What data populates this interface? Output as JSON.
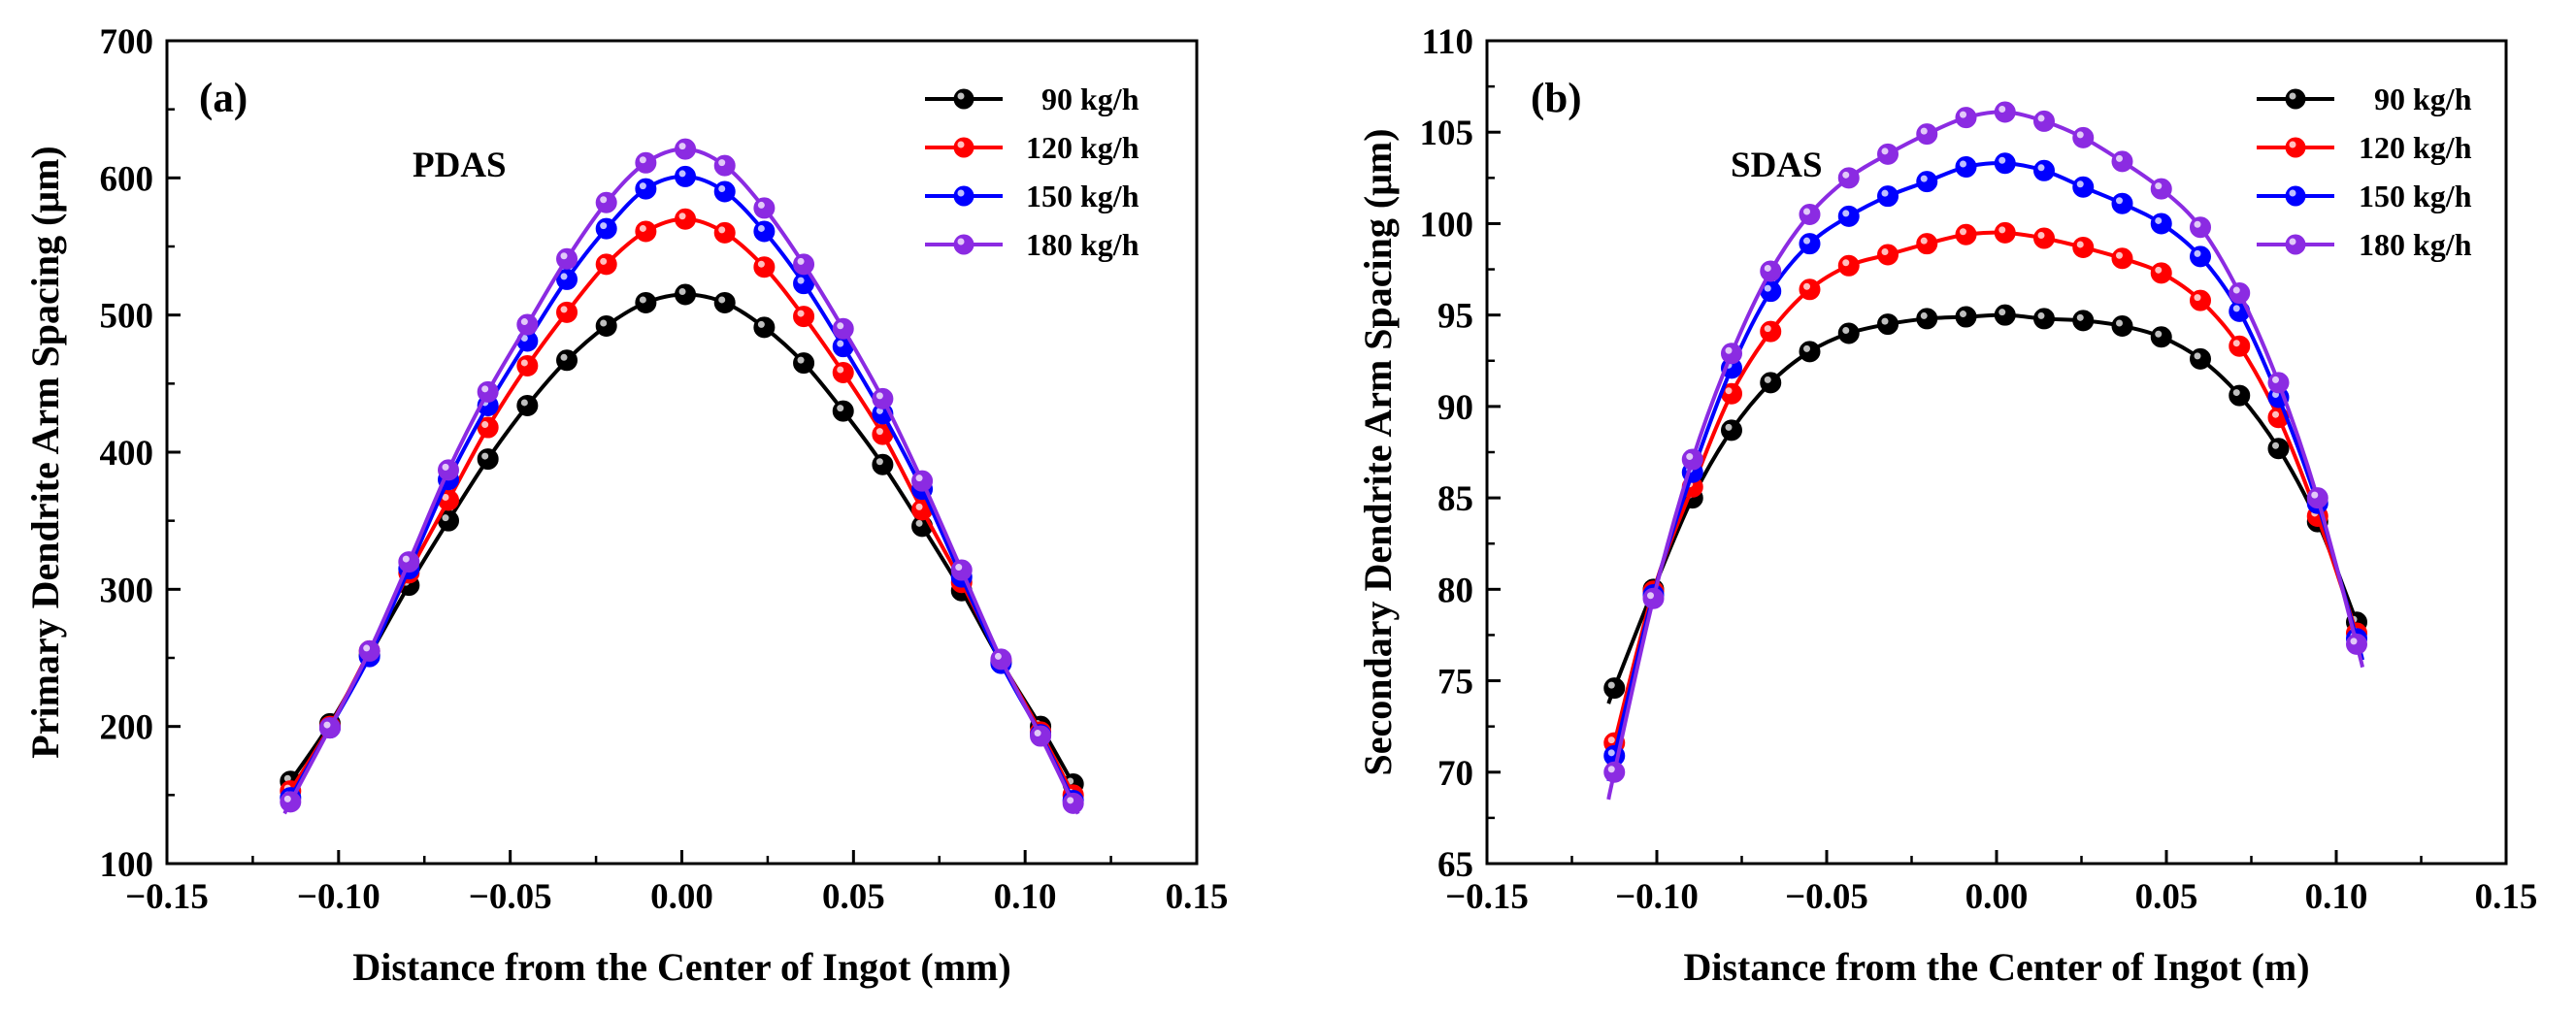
{
  "chart_data": [
    {
      "type": "line",
      "panel_label": "(a)",
      "annotation": "PDAS",
      "xlabel": "Distance from the Center of Ingot (mm)",
      "ylabel": "Primary Dendrite Arm Spacing (μm)",
      "xlim": [
        -0.15,
        0.15
      ],
      "ylim": [
        100,
        700
      ],
      "xticks": [
        -0.15,
        -0.1,
        -0.05,
        0.0,
        0.05,
        0.1,
        0.15
      ],
      "xtick_labels": [
        "−0.15",
        "−0.10",
        "−0.05",
        "0.00",
        "0.05",
        "0.10",
        "0.15"
      ],
      "yticks": [
        100,
        200,
        300,
        400,
        500,
        600,
        700
      ],
      "ytick_labels": [
        "100",
        "200",
        "300",
        "400",
        "500",
        "600",
        "700"
      ],
      "legend_position": "top-right",
      "x": [
        -0.114,
        -0.1025,
        -0.091,
        -0.0795,
        -0.068,
        -0.0565,
        -0.045,
        -0.0335,
        -0.022,
        -0.0105,
        0.001,
        0.0125,
        0.024,
        0.0355,
        0.047,
        0.0585,
        0.07,
        0.0815,
        0.093,
        0.1045,
        0.114
      ],
      "series": [
        {
          "name": "90 kg/h",
          "color": "#000000",
          "values": [
            160,
            202,
            252,
            303,
            350,
            395,
            434,
            467,
            492,
            509,
            515,
            509,
            491,
            465,
            430,
            391,
            346,
            299,
            247,
            200,
            158
          ]
        },
        {
          "name": "120 kg/h",
          "color": "#ff0000",
          "values": [
            153,
            200,
            255,
            312,
            365,
            418,
            463,
            502,
            537,
            561,
            570,
            560,
            535,
            499,
            458,
            413,
            358,
            305,
            248,
            196,
            150
          ]
        },
        {
          "name": "150 kg/h",
          "color": "#0000ff",
          "values": [
            148,
            199,
            251,
            315,
            380,
            434,
            481,
            526,
            563,
            592,
            601,
            590,
            561,
            523,
            477,
            428,
            373,
            309,
            246,
            194,
            146
          ]
        },
        {
          "name": "180 kg/h",
          "color": "#8b2be2",
          "values": [
            145,
            199,
            255,
            320,
            387,
            444,
            493,
            541,
            582,
            611,
            621,
            609,
            578,
            537,
            490,
            439,
            379,
            314,
            249,
            193,
            144
          ]
        }
      ]
    },
    {
      "type": "line",
      "panel_label": "(b)",
      "annotation": "SDAS",
      "xlabel": "Distance from the Center of Ingot (m)",
      "ylabel": "Secondary Dendrite Arm Spacing (μm)",
      "xlim": [
        -0.15,
        0.15
      ],
      "ylim": [
        65,
        110
      ],
      "xticks": [
        -0.15,
        -0.1,
        -0.05,
        0.0,
        0.05,
        0.1,
        0.15
      ],
      "xtick_labels": [
        "−0.15",
        "−0.10",
        "−0.05",
        "0.00",
        "0.05",
        "0.10",
        "0.15"
      ],
      "yticks": [
        65,
        70,
        75,
        80,
        85,
        90,
        95,
        100,
        105,
        110
      ],
      "ytick_labels": [
        "65",
        "70",
        "75",
        "80",
        "85",
        "90",
        "95",
        "100",
        "105",
        "110"
      ],
      "legend_position": "top-right",
      "x": [
        -0.1125,
        -0.101,
        -0.0895,
        -0.078,
        -0.0665,
        -0.055,
        -0.0435,
        -0.032,
        -0.0205,
        -0.009,
        0.0025,
        0.014,
        0.0255,
        0.037,
        0.0485,
        0.06,
        0.0715,
        0.083,
        0.0945,
        0.106
      ],
      "series": [
        {
          "name": "90 kg/h",
          "color": "#000000",
          "values": [
            74.6,
            80.0,
            85.0,
            88.7,
            91.3,
            93.0,
            94.0,
            94.5,
            94.8,
            94.9,
            95.0,
            94.8,
            94.7,
            94.4,
            93.8,
            92.6,
            90.6,
            87.7,
            83.7,
            78.2
          ]
        },
        {
          "name": "120 kg/h",
          "color": "#ff0000",
          "values": [
            71.6,
            79.9,
            85.6,
            90.7,
            94.1,
            96.4,
            97.7,
            98.3,
            98.9,
            99.4,
            99.5,
            99.2,
            98.7,
            98.1,
            97.3,
            95.8,
            93.3,
            89.4,
            84.0,
            77.6
          ]
        },
        {
          "name": "150 kg/h",
          "color": "#0000ff",
          "values": [
            70.9,
            79.7,
            86.4,
            92.1,
            96.3,
            98.9,
            100.4,
            101.5,
            102.3,
            103.1,
            103.3,
            102.9,
            102.0,
            101.1,
            100.0,
            98.2,
            95.2,
            90.5,
            84.7,
            77.3
          ]
        },
        {
          "name": "180 kg/h",
          "color": "#8b2be2",
          "values": [
            70.0,
            79.5,
            87.1,
            92.9,
            97.4,
            100.5,
            102.5,
            103.8,
            104.9,
            105.8,
            106.1,
            105.6,
            104.7,
            103.4,
            101.9,
            99.8,
            96.2,
            91.3,
            85.0,
            77.0
          ]
        }
      ]
    }
  ]
}
